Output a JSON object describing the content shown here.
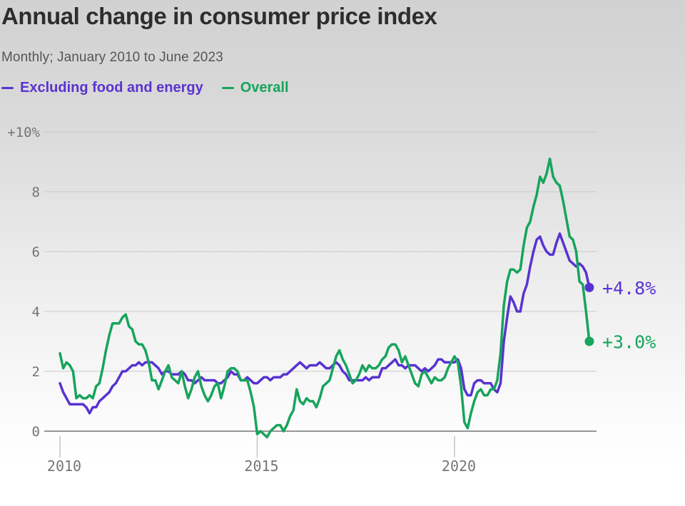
{
  "header": {
    "title": "Annual change in consumer price index",
    "subtitle": "Monthly; January 2010 to June 2023"
  },
  "legend": [
    {
      "label": "Excluding food and energy",
      "color": "#5833d1"
    },
    {
      "label": "Overall",
      "color": "#17a45c"
    }
  ],
  "colors": {
    "purple": "#5833d1",
    "green": "#17a45c",
    "grid": "#c9c9c9",
    "zero_axis": "#979797",
    "tick_text": "#757575"
  },
  "chart_data": {
    "type": "line",
    "title": "Annual change in consumer price index",
    "subtitle": "Monthly; January 2010 to June 2023",
    "x_start": "2010-01",
    "x_end": "2023-06",
    "x_unit": "month",
    "ylim": [
      -0.5,
      10
    ],
    "grid": true,
    "legend_position": "top",
    "y_ticks": [
      10,
      8,
      6,
      4,
      2,
      0
    ],
    "y_tick_labels": [
      "+10%",
      "8",
      "6",
      "4",
      "2",
      "0"
    ],
    "x_tick_years": [
      2010,
      2015,
      2020
    ],
    "x_tick_labels": [
      "2010",
      "2015",
      "2020"
    ],
    "series": [
      {
        "name": "Excluding food and energy",
        "color": "#5833d1",
        "end_label": "+4.8%",
        "values": [
          1.6,
          1.3,
          1.1,
          0.9,
          0.9,
          0.9,
          0.9,
          0.9,
          0.8,
          0.6,
          0.8,
          0.8,
          1.0,
          1.1,
          1.2,
          1.3,
          1.5,
          1.6,
          1.8,
          2.0,
          2.0,
          2.1,
          2.2,
          2.2,
          2.3,
          2.2,
          2.3,
          2.3,
          2.3,
          2.2,
          2.1,
          1.9,
          2.0,
          2.0,
          1.9,
          1.9,
          1.9,
          2.0,
          1.9,
          1.7,
          1.7,
          1.6,
          1.7,
          1.8,
          1.7,
          1.7,
          1.7,
          1.7,
          1.6,
          1.6,
          1.7,
          1.8,
          2.0,
          1.9,
          1.9,
          1.7,
          1.7,
          1.8,
          1.7,
          1.6,
          1.6,
          1.7,
          1.8,
          1.8,
          1.7,
          1.8,
          1.8,
          1.8,
          1.9,
          1.9,
          2.0,
          2.1,
          2.2,
          2.3,
          2.2,
          2.1,
          2.2,
          2.2,
          2.2,
          2.3,
          2.2,
          2.1,
          2.1,
          2.2,
          2.3,
          2.2,
          2.0,
          1.9,
          1.7,
          1.7,
          1.7,
          1.7,
          1.7,
          1.8,
          1.7,
          1.8,
          1.8,
          1.8,
          2.1,
          2.1,
          2.2,
          2.3,
          2.4,
          2.2,
          2.2,
          2.1,
          2.2,
          2.2,
          2.2,
          2.1,
          2.0,
          2.1,
          2.0,
          2.1,
          2.2,
          2.4,
          2.4,
          2.3,
          2.3,
          2.3,
          2.3,
          2.4,
          2.1,
          1.4,
          1.2,
          1.2,
          1.6,
          1.7,
          1.7,
          1.6,
          1.6,
          1.6,
          1.4,
          1.3,
          1.6,
          3.0,
          3.8,
          4.5,
          4.3,
          4.0,
          4.0,
          4.6,
          4.9,
          5.5,
          6.0,
          6.4,
          6.5,
          6.2,
          6.0,
          5.9,
          5.9,
          6.3,
          6.6,
          6.3,
          6.0,
          5.7,
          5.6,
          5.5,
          5.6,
          5.5,
          5.3,
          4.8
        ]
      },
      {
        "name": "Overall",
        "color": "#17a45c",
        "end_label": "+3.0%",
        "values": [
          2.6,
          2.1,
          2.3,
          2.2,
          2.0,
          1.1,
          1.2,
          1.1,
          1.1,
          1.2,
          1.1,
          1.5,
          1.6,
          2.1,
          2.7,
          3.2,
          3.6,
          3.6,
          3.6,
          3.8,
          3.9,
          3.5,
          3.4,
          3.0,
          2.9,
          2.9,
          2.7,
          2.3,
          1.7,
          1.7,
          1.4,
          1.7,
          2.0,
          2.2,
          1.8,
          1.7,
          1.6,
          2.0,
          1.5,
          1.1,
          1.4,
          1.8,
          2.0,
          1.5,
          1.2,
          1.0,
          1.2,
          1.5,
          1.6,
          1.1,
          1.5,
          2.0,
          2.1,
          2.1,
          2.0,
          1.7,
          1.7,
          1.7,
          1.3,
          0.8,
          -0.1,
          0.0,
          -0.1,
          -0.2,
          0.0,
          0.1,
          0.2,
          0.2,
          0.0,
          0.2,
          0.5,
          0.7,
          1.4,
          1.0,
          0.9,
          1.1,
          1.0,
          1.0,
          0.8,
          1.1,
          1.5,
          1.6,
          1.7,
          2.1,
          2.5,
          2.7,
          2.4,
          2.2,
          1.9,
          1.6,
          1.7,
          1.9,
          2.2,
          2.0,
          2.2,
          2.1,
          2.1,
          2.2,
          2.4,
          2.5,
          2.8,
          2.9,
          2.9,
          2.7,
          2.3,
          2.5,
          2.2,
          1.9,
          1.6,
          1.5,
          1.9,
          2.0,
          1.8,
          1.6,
          1.8,
          1.7,
          1.7,
          1.8,
          2.1,
          2.3,
          2.5,
          2.3,
          1.5,
          0.3,
          0.1,
          0.6,
          1.0,
          1.3,
          1.4,
          1.2,
          1.2,
          1.4,
          1.4,
          1.7,
          2.6,
          4.2,
          5.0,
          5.4,
          5.4,
          5.3,
          5.4,
          6.2,
          6.8,
          7.0,
          7.5,
          7.9,
          8.5,
          8.3,
          8.6,
          9.1,
          8.5,
          8.3,
          8.2,
          7.7,
          7.1,
          6.5,
          6.4,
          6.0,
          5.0,
          4.9,
          4.0,
          3.0
        ]
      }
    ]
  }
}
